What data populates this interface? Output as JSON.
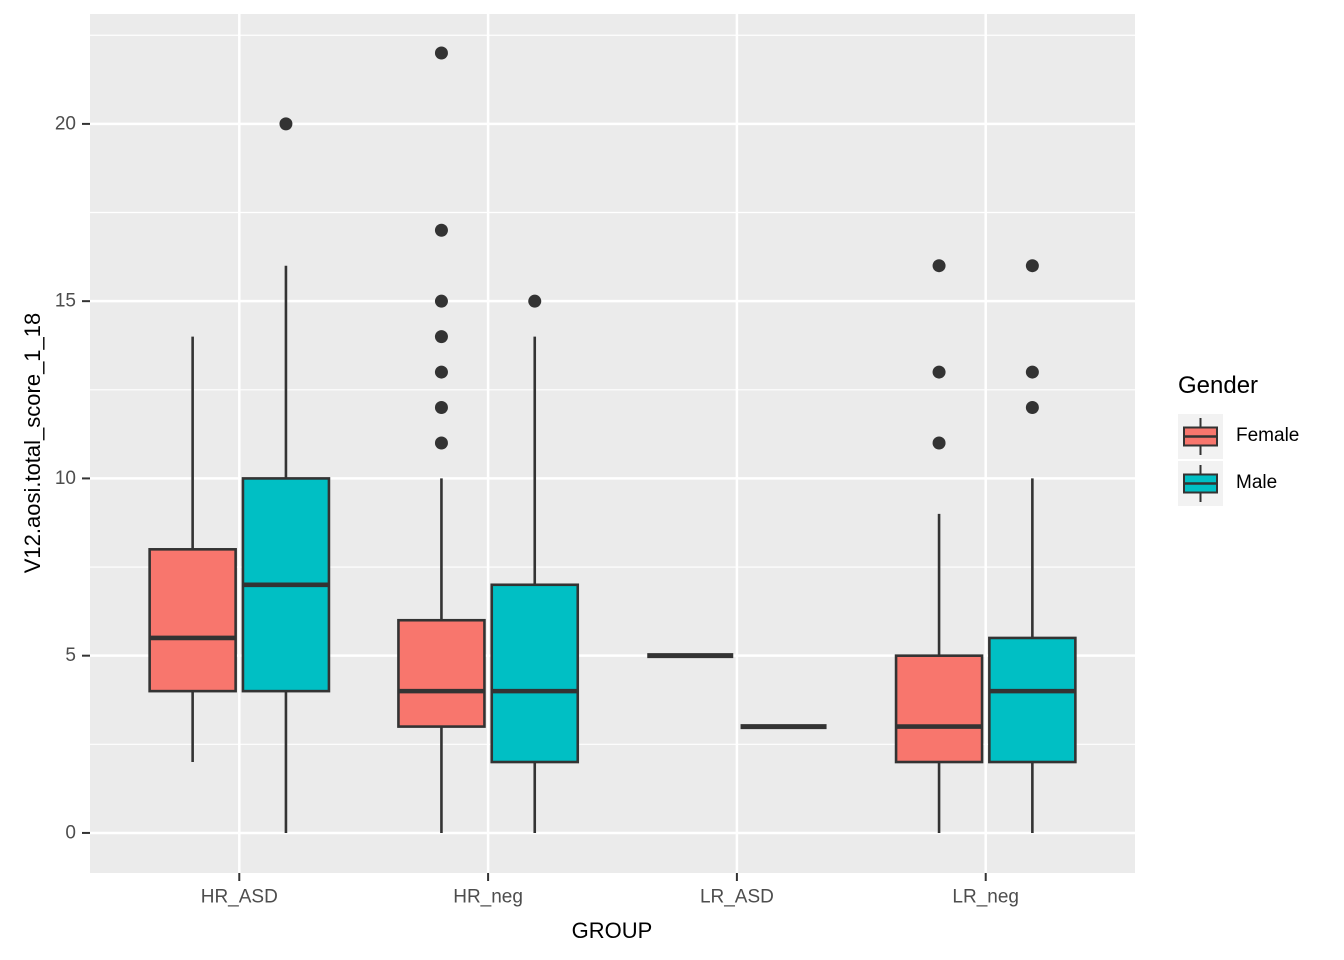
{
  "chart_data": {
    "type": "boxplot",
    "title": "",
    "xlabel": "GROUP",
    "ylabel": "V12.aosi.total_score_1_18",
    "categories": [
      "HR_ASD",
      "HR_neg",
      "LR_ASD",
      "LR_neg"
    ],
    "y_axis": {
      "ticks": [
        0,
        5,
        10,
        15,
        20
      ],
      "minor_ticks": [
        2.5,
        7.5,
        12.5,
        17.5,
        22.5
      ],
      "range": [
        -1.13,
        23.1
      ],
      "grid": true
    },
    "legend": {
      "title": "Gender",
      "position": "right",
      "items": [
        {
          "label": "Female",
          "color": "#F8766D"
        },
        {
          "label": "Male",
          "color": "#00BFC4"
        }
      ]
    },
    "series": [
      {
        "name": "Female",
        "color": "#F8766D",
        "boxes": [
          {
            "category": "HR_ASD",
            "whisker_low": 2,
            "q1": 4,
            "median": 5.5,
            "q3": 8,
            "whisker_high": 14,
            "outliers": []
          },
          {
            "category": "HR_neg",
            "whisker_low": 0,
            "q1": 3,
            "median": 4,
            "q3": 6,
            "whisker_high": 10,
            "outliers": [
              11,
              12,
              13,
              14,
              15,
              17,
              22
            ]
          },
          {
            "category": "LR_ASD",
            "whisker_low": 5,
            "q1": 5,
            "median": 5,
            "q3": 5,
            "whisker_high": 5,
            "outliers": []
          },
          {
            "category": "LR_neg",
            "whisker_low": 0,
            "q1": 2,
            "median": 3,
            "q3": 5,
            "whisker_high": 9,
            "outliers": [
              11,
              13,
              16
            ]
          }
        ]
      },
      {
        "name": "Male",
        "color": "#00BFC4",
        "boxes": [
          {
            "category": "HR_ASD",
            "whisker_low": 0,
            "q1": 4,
            "median": 7,
            "q3": 10,
            "whisker_high": 16,
            "outliers": [
              20
            ]
          },
          {
            "category": "HR_neg",
            "whisker_low": 0,
            "q1": 2,
            "median": 4,
            "q3": 7,
            "whisker_high": 14,
            "outliers": [
              15
            ]
          },
          {
            "category": "LR_ASD",
            "whisker_low": 3,
            "q1": 3,
            "median": 3,
            "q3": 3,
            "whisker_high": 3,
            "outliers": []
          },
          {
            "category": "LR_neg",
            "whisker_low": 0,
            "q1": 2,
            "median": 4,
            "q3": 5.5,
            "whisker_high": 10,
            "outliers": [
              12,
              13,
              16
            ]
          }
        ]
      }
    ],
    "style": {
      "panel_bg": "#EBEBEB",
      "grid_color": "#FFFFFF",
      "box_border": "#333333",
      "outlier_color": "#333333",
      "tick_color": "#333333",
      "tick_label_color": "#4D4D4D",
      "key_bg": "#F2F2F2"
    }
  }
}
